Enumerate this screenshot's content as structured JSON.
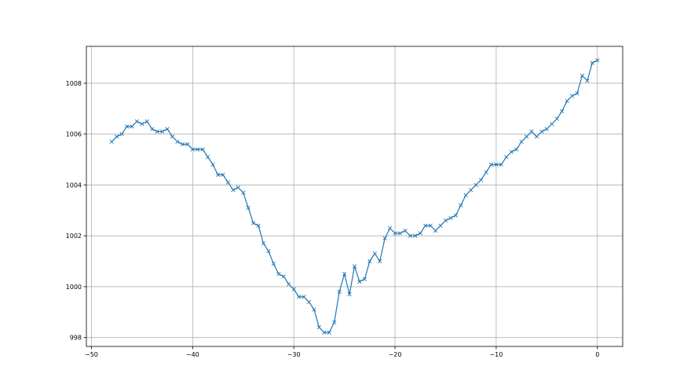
{
  "chart_data": {
    "type": "line",
    "title": "",
    "xlabel": "",
    "ylabel": "",
    "xlim": [
      -50.5,
      2.5
    ],
    "ylim": [
      997.65,
      1009.45
    ],
    "grid": true,
    "marker": "x",
    "line_color": "#1f77b4",
    "x_ticks": [
      -50,
      -40,
      -30,
      -20,
      -10,
      0
    ],
    "x_tick_labels": [
      "−50",
      "−40",
      "−30",
      "−20",
      "−10",
      "0"
    ],
    "y_ticks": [
      998,
      1000,
      1002,
      1004,
      1006,
      1008
    ],
    "y_tick_labels": [
      "998",
      "1000",
      "1002",
      "1004",
      "1006",
      "1008"
    ],
    "series": [
      {
        "x": [
          -48,
          -47.5,
          -47,
          -46.5,
          -46,
          -45.5,
          -45,
          -44.5,
          -44,
          -43.5,
          -43,
          -42.5,
          -42,
          -41.5,
          -41,
          -40.5,
          -40,
          -39.5,
          -39,
          -38.5,
          -38,
          -37.5,
          -37,
          -36.5,
          -36,
          -35.5,
          -35,
          -34.5,
          -34,
          -33.5,
          -33,
          -32.5,
          -32,
          -31.5,
          -31,
          -30.5,
          -30,
          -29.5,
          -29,
          -28.5,
          -28,
          -27.5,
          -27,
          -26.5,
          -26,
          -25.5,
          -25,
          -24.5,
          -24,
          -23.5,
          -23,
          -22.5,
          -22,
          -21.5,
          -21,
          -20.5,
          -20,
          -19.5,
          -19,
          -18.5,
          -18,
          -17.5,
          -17,
          -16.5,
          -16,
          -15.5,
          -15,
          -14.5,
          -14,
          -13.5,
          -13,
          -12.5,
          -12,
          -11.5,
          -11,
          -10.5,
          -10,
          -9.5,
          -9,
          -8.5,
          -8,
          -7.5,
          -7,
          -6.5,
          -6,
          -5.5,
          -5,
          -4.5,
          -4,
          -3.5,
          -3,
          -2.5,
          -2,
          -1.5,
          -1,
          -0.5,
          0
        ],
        "y": [
          1005.7,
          1005.9,
          1006.0,
          1006.3,
          1006.3,
          1006.5,
          1006.4,
          1006.5,
          1006.2,
          1006.1,
          1006.1,
          1006.2,
          1005.9,
          1005.7,
          1005.6,
          1005.6,
          1005.4,
          1005.4,
          1005.4,
          1005.1,
          1004.8,
          1004.4,
          1004.4,
          1004.1,
          1003.8,
          1003.9,
          1003.7,
          1003.1,
          1002.5,
          1002.4,
          1001.7,
          1001.4,
          1000.9,
          1000.5,
          1000.4,
          1000.1,
          999.9,
          999.6,
          999.6,
          999.4,
          999.1,
          998.4,
          998.2,
          998.2,
          998.6,
          999.8,
          1000.5,
          999.7,
          1000.8,
          1000.2,
          1000.3,
          1001.0,
          1001.3,
          1001.0,
          1001.9,
          1002.3,
          1002.1,
          1002.1,
          1002.2,
          1002.0,
          1002.0,
          1002.1,
          1002.4,
          1002.4,
          1002.2,
          1002.4,
          1002.6,
          1002.7,
          1002.8,
          1003.2,
          1003.6,
          1003.8,
          1004.0,
          1004.2,
          1004.5,
          1004.8,
          1004.8,
          1004.8,
          1005.1,
          1005.3,
          1005.4,
          1005.7,
          1005.9,
          1006.1,
          1005.9,
          1006.1,
          1006.2,
          1006.4,
          1006.6,
          1006.9,
          1007.3,
          1007.5,
          1007.6,
          1008.3,
          1008.1,
          1008.8,
          1008.9
        ]
      }
    ]
  }
}
